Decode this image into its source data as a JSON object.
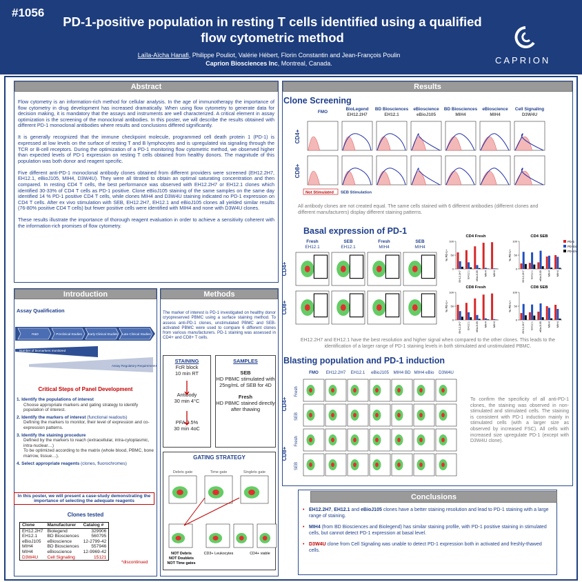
{
  "header": {
    "number": "#1056",
    "title": "PD-1-positive population in resting T cells identified using a qualified flow cytometric method",
    "authors_first": "Laïla-Aïcha Hanafi",
    "authors_rest": ", Philippe Pouliot, Valérie Hébert, Florin Constantin and Jean-François Poulin",
    "affiliation_bold": "Caprion Biosciences Inc",
    "affiliation_rest": ", Montreal, Canada.",
    "logo": "CAPRION"
  },
  "abstract": {
    "heading": "Abstract",
    "paragraphs": [
      "Flow cytometry is an information-rich method for cellular analysis. In the age of immunotherapy the importance of flow cytometry in drug development has increased dramatically.  When using flow cytometry to generate data for decision making, it is mandatory that the assays and instruments are well characterized.  A critical element in assay optimization is the screening of the monoclonal antibodies. In this poster, we will describe the results obtained with different PD-1 monoclonal antibodies where results and conclusions differed significantly.",
      "It is generally recognized that the immune checkpoint molecule, programmed cell death protein 1 (PD-1) is expressed at low levels on the surface of resting T and B lymphocytes and is upregulated via signaling through the TCR or B-cell receptors. During the optimization of a PD-1 monitoring flow cytometric method, we observed higher than expected levels of PD-1 expression on resting T cells obtained from healthy donors. The magnitude of this population was both donor and reagent specific.",
      "Five different anti-PD-1 monoclonal antibody clones obtained from different providers were screened (EH12.2H7, EH12.1, eBioJ105, MIH4, D3W4U). They were all titrated to obtain an optimal saturating concentration and then compared. In resting CD4 T cells, the best performance was observed with EH12.2H7 or EH12.1 clones which identified 30-33% of CD4 T cells as PD-1 positive. Clone eBioJ105 staining of the same samples on the same day identified 14 % PD-1 positive CD4 T cells, while clones MIH4 and D3W4U staining indicated no PD-1 expression on CD4 T cells. After ex vivo stimulation with SEB, EH12.2H7, EH12.1 and eBioJ105 clones all yielded similar results (76-80% positive CD4 T cells) but fewer positive cells were identified with MIH4 and none with D3W4U clones.",
      "These results illustrate the importance of thorough reagent evaluation in order to achieve a sensitivity coherent with the information-rich promises of flow cytometry."
    ]
  },
  "introduction": {
    "heading": "Introduction",
    "assay_title": "Assay Qualification",
    "stages": [
      "R&D",
      "Preclinical Studies",
      "Early Clinical Studies",
      "Late Clinical Studies"
    ],
    "biomarkers": "Number of biomarkers monitored",
    "requirements": "Assay Regulatory Requirements",
    "critical_title": "Critical Steps of Panel Development",
    "steps": [
      {
        "title": "1. Identify the populations of interest",
        "bullets": [
          "Choose appropriate markers and gating strategy to identify population of interest."
        ]
      },
      {
        "title": "2. Identify the markers of interest",
        "note": " (functional readouts)",
        "bullets": [
          "Defining the markers to monitor, their level of expression and co-expression patterns."
        ]
      },
      {
        "title": "3. Identify the staining procedure",
        "bullets": [
          "Defined by the markers to reach (extracellular, intra-cytoplasmic, intra-nuclear…)",
          "To be optimized according to the matrix (whole blood, PBMC, bone marrow, tissue…)."
        ]
      },
      {
        "title": "4. Select appropriate reagents",
        "note": " (clones, fluorochromes)",
        "bullets": []
      }
    ],
    "highlight": "In this poster, we will present a case-study demonstrating the importance of selecting the adequate reagents",
    "clones_title": "Clones tested",
    "table": {
      "header": [
        "Clone",
        "Manufacturer",
        "Catalog #"
      ],
      "rows": [
        [
          "EH12.2H7",
          "Biolegend",
          "329906"
        ],
        [
          "EH12.1",
          "BD Biosciences",
          "560795"
        ],
        [
          "eBioJ105",
          "eBioscience",
          "12-2799-42"
        ],
        [
          "MIH4",
          "BD Biosciences",
          "557946"
        ],
        [
          "MIH4",
          "eBioscience",
          "12-9969-42"
        ],
        [
          "D3W4U",
          "Cell Signaling",
          "15121"
        ]
      ],
      "footnote": "*discontinued"
    }
  },
  "methods": {
    "heading": "Methods",
    "text": "The marker of interest is PD-1 investigated on healthy donor cryopreserved PBMC using a surface staining method. To assess anti-PD-1 clones, unstimulated PBMC and SEB-activated PBMC were used to compare 6 different clones from various manufacturers. PD-1 staining was assessed in CD4+ and CD8+ T cells.",
    "staining": [
      "STAINING",
      "FcR block",
      "10 min RT",
      "Antibody",
      "30 min 4°C",
      "PFA 0.5%",
      "30 min 4oC"
    ],
    "samples": {
      "title": "SAMPLES",
      "seb_title": "SEB",
      "seb_text": "HD PBMC stimulated with 25ng/mL of SEB for 4D",
      "fresh_title": "Fresh",
      "fresh_text": "HD PBMC stained directly after thawing"
    },
    "gating": {
      "title": "GATING STRATEGY",
      "gates": [
        "Debris gate",
        "Time gate",
        "Singlets gate"
      ],
      "not": [
        "NOT Debris",
        "NOT Doublets",
        "NOT Time gates"
      ],
      "leuk": "CD3+ Leukocytes",
      "viable": "CD4+ viable"
    }
  },
  "results": {
    "heading": "Results",
    "screening": {
      "title": "Clone Screening",
      "columns": [
        [
          "FMO"
        ],
        [
          "BioLegend",
          "EH12.2H7"
        ],
        [
          "BD Biosciences",
          "EH12.1"
        ],
        [
          "eBioscience",
          "eBioJ105"
        ],
        [
          "BD Biosciences",
          "MIH4"
        ],
        [
          "eBioscience",
          "MIH4"
        ],
        [
          "Cell Signaling",
          "D3W4U"
        ]
      ],
      "rows": [
        "CD4+",
        "CD8+"
      ],
      "not_stim": "Not Stimulated",
      "seb": "SEB Stimulation",
      "caption": "All antibody clones are not created equal. The same cells stained with 6 different antibodies (different clones and different manufacturers) display different staining patterns."
    },
    "basal": {
      "title": "Basal expression of PD-1",
      "columns": [
        [
          "Fresh",
          "EH12.1"
        ],
        [
          "SEB",
          "EH12.1"
        ],
        [
          "Fresh",
          "MIH4"
        ],
        [
          "SEB",
          "MIH4"
        ]
      ],
      "rows": [
        "CD4+",
        "CD8+"
      ],
      "y_label": "% PD-1+",
      "caption": "EH12.2H7 and EH12.1 have the best resolution and higher signal when compared to the other clones. This leads to the identification of a larger range of PD-1 staining levels in both stimulated and unstimulated PBMC."
    },
    "blasting": {
      "title": "Blasting population and PD-1 induction",
      "columns": [
        "FMO",
        "EH12.2H7",
        "EH12.1",
        "eBioJ105",
        "MIH4 BD",
        "MIH4 eBio",
        "D3W4U"
      ],
      "groups": [
        "CD4+",
        "CD8+"
      ],
      "rows": [
        "Fresh",
        "SEB",
        "Fresh",
        "SEB"
      ],
      "text": "To confirm the specificity of all anti-PD-1 clones, the staining was observed in non-stimulated and stimulated cells. The staining is consistent with PD-1 induction mainly in stimulated cells (with a larger size as observed by increased FSC). All cells with increased size upregulate PD-1 (except with D3W4U clone)."
    },
    "conclusions": {
      "heading": "Conclusions",
      "bullets": [
        [
          {
            "b": "EH12.2H7"
          },
          {
            "t": ", "
          },
          {
            "b": "EH12.1"
          },
          {
            "t": " and "
          },
          {
            "b": "eBioJ105"
          },
          {
            "t": " clones have a better staining resolution and lead to PD-1 staining with a large range of staining."
          }
        ],
        [
          {
            "b": "MIH4"
          },
          {
            "t": " (from BD Biosciences and Biolegend) has similar staining profile, with PD-1 positive staining in stimulated cells, but cannot detect PD-1 expression at basal level."
          }
        ],
        [
          {
            "r": "D3W4U"
          },
          {
            "t": " clone from Cell Signaling was unable to detect PD-1 expression both in activated and freshly-thawed cells."
          }
        ]
      ]
    }
  },
  "chart_data": [
    {
      "type": "bar",
      "title": "CD4 Fresh",
      "categories": [
        "EH12.2H7",
        "EH12.1",
        "eBioJ105",
        "MIH4",
        "MIH4"
      ],
      "ylim": [
        0,
        100
      ],
      "yticks": [
        0,
        50,
        100
      ],
      "series": [
        {
          "color": "#d62728",
          "values": [
            60,
            68,
            82,
            95,
            97
          ]
        },
        {
          "color": "#1f4fbf",
          "values": [
            28,
            24,
            14,
            4,
            2
          ]
        },
        {
          "color": "#111111",
          "values": [
            8,
            6,
            3,
            1,
            1
          ]
        }
      ]
    },
    {
      "type": "bar",
      "title": "CD4 SEB",
      "categories": [
        "EH12.2H7",
        "EH12.1",
        "eBioJ105",
        "MIH4",
        "MIH4"
      ],
      "ylim": [
        0,
        100
      ],
      "yticks": [
        0,
        50,
        100
      ],
      "series": [
        {
          "name": "PD-1-",
          "color": "#d62728",
          "values": [
            20,
            22,
            24,
            45,
            50
          ]
        },
        {
          "name": "PD-1lo",
          "color": "#1f4fbf",
          "values": [
            62,
            60,
            66,
            48,
            44
          ]
        },
        {
          "name": "PD-1hi",
          "color": "#111111",
          "values": [
            18,
            16,
            10,
            5,
            4
          ]
        }
      ]
    },
    {
      "type": "bar",
      "title": "CD8 Fresh",
      "categories": [
        "EH12.2H7",
        "EH12.1",
        "eBioJ105",
        "MIH4",
        "MIH4"
      ],
      "ylim": [
        0,
        100
      ],
      "yticks": [
        0,
        50,
        100
      ],
      "series": [
        {
          "color": "#d62728",
          "values": [
            55,
            62,
            78,
            92,
            96
          ]
        },
        {
          "color": "#1f4fbf",
          "values": [
            32,
            28,
            18,
            6,
            3
          ]
        },
        {
          "color": "#111111",
          "values": [
            12,
            10,
            4,
            2,
            1
          ]
        }
      ]
    },
    {
      "type": "bar",
      "title": "CD8 SEB",
      "categories": [
        "EH12.2H7",
        "EH12.1",
        "eBioJ105",
        "MIH4",
        "MIH4"
      ],
      "ylim": [
        0,
        100
      ],
      "yticks": [
        0,
        50,
        100
      ],
      "series": [
        {
          "color": "#d62728",
          "values": [
            25,
            28,
            30,
            50,
            55
          ]
        },
        {
          "color": "#1f4fbf",
          "values": [
            58,
            56,
            60,
            44,
            40
          ]
        },
        {
          "color": "#111111",
          "values": [
            17,
            16,
            10,
            6,
            5
          ]
        }
      ]
    }
  ]
}
